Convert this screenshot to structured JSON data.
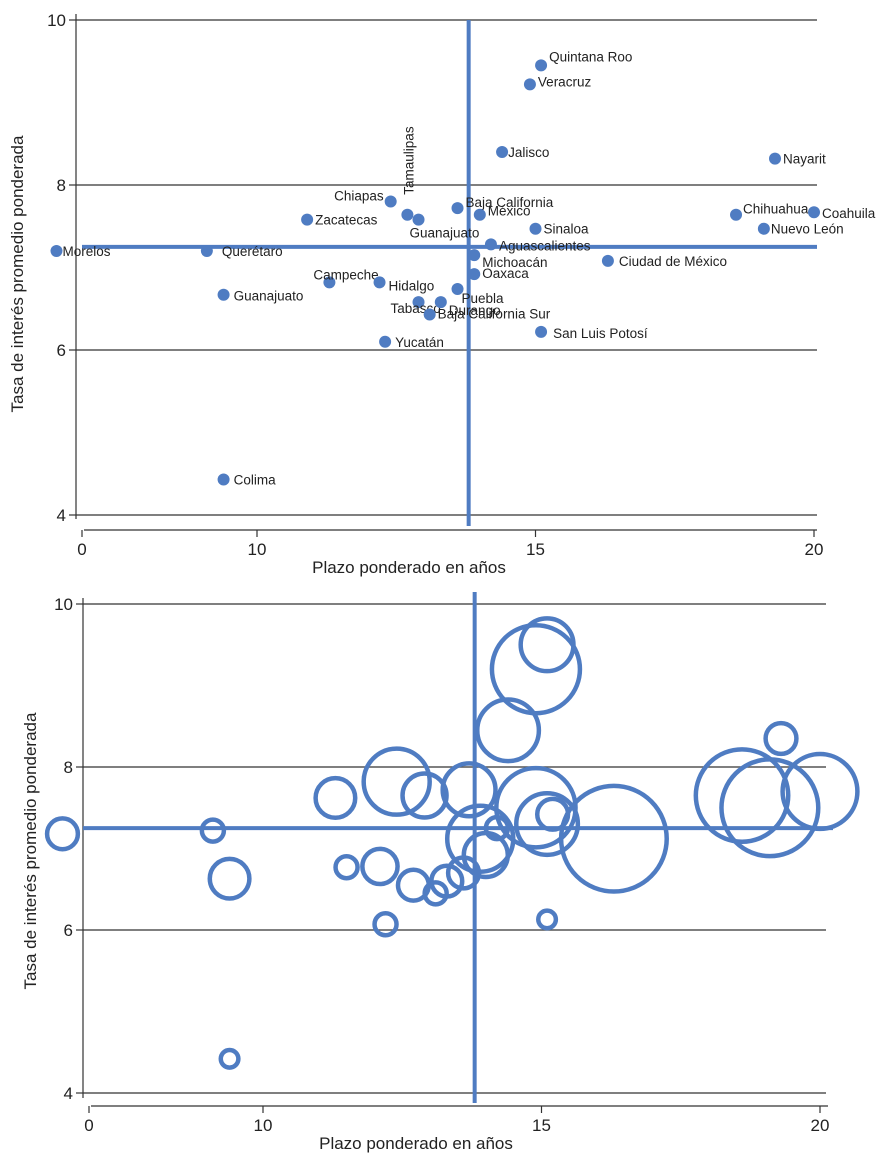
{
  "colors": {
    "marker": "#4f7cc2",
    "grid": "#555555",
    "axis": "#333333",
    "text": "#222222",
    "background": "#ffffff"
  },
  "chart_data": [
    {
      "type": "scatter",
      "title": "",
      "xlabel": "Plazo ponderado en años",
      "ylabel": "Tasa de interés promedio ponderada",
      "xlim": [
        0,
        20
      ],
      "ylim": [
        4,
        10
      ],
      "xticks": [
        "0",
        "10",
        "15",
        "20"
      ],
      "yticks": [
        "4",
        "6",
        "8",
        "10"
      ],
      "reference_lines": {
        "x": 13.8,
        "y": 7.25
      },
      "grid": "horizontal",
      "points": [
        {
          "label": "Quintana Roo",
          "x": 15.1,
          "y": 9.45
        },
        {
          "label": "Veracruz",
          "x": 14.9,
          "y": 9.22
        },
        {
          "label": "Jalisco",
          "x": 14.4,
          "y": 8.4
        },
        {
          "label": "Nayarit",
          "x": 19.3,
          "y": 8.32
        },
        {
          "label": "Chiapas",
          "x": 12.4,
          "y": 7.8
        },
        {
          "label": "Tamaulipas",
          "x": 12.7,
          "y": 7.64
        },
        {
          "label": "Guanajuato",
          "x": 12.9,
          "y": 7.58
        },
        {
          "label": "Baja California",
          "x": 13.6,
          "y": 7.72
        },
        {
          "label": "México",
          "x": 14.0,
          "y": 7.64
        },
        {
          "label": "Sinaloa",
          "x": 15.0,
          "y": 7.47
        },
        {
          "label": "Zacatecas",
          "x": 10.9,
          "y": 7.58
        },
        {
          "label": "Chihuahua",
          "x": 18.6,
          "y": 7.64
        },
        {
          "label": "Coahuila",
          "x": 20.0,
          "y": 7.67
        },
        {
          "label": "Nuevo León",
          "x": 19.1,
          "y": 7.47
        },
        {
          "label": "Aguascalientes",
          "x": 14.2,
          "y": 7.28
        },
        {
          "label": "Michoacán",
          "x": 13.9,
          "y": 7.15
        },
        {
          "label": "Morelos",
          "x": 6.4,
          "y": 7.2
        },
        {
          "label": "Querétaro",
          "x": 9.1,
          "y": 7.2
        },
        {
          "label": "Ciudad de México",
          "x": 16.3,
          "y": 7.08
        },
        {
          "label": "Oaxaca",
          "x": 13.9,
          "y": 6.92
        },
        {
          "label": "Campeche",
          "x": 11.3,
          "y": 6.82
        },
        {
          "label": "Hidalgo",
          "x": 12.2,
          "y": 6.82
        },
        {
          "label": "Puebla",
          "x": 13.6,
          "y": 6.74
        },
        {
          "label": "Guanajuato",
          "x": 9.4,
          "y": 6.67
        },
        {
          "label": "Tabasco",
          "x": 12.9,
          "y": 6.58
        },
        {
          "label": "Durango",
          "x": 13.3,
          "y": 6.58
        },
        {
          "label": "Baja California Sur",
          "x": 13.1,
          "y": 6.43
        },
        {
          "label": "San Luis Potosí",
          "x": 15.1,
          "y": 6.22
        },
        {
          "label": "Yucatán",
          "x": 12.3,
          "y": 6.1
        },
        {
          "label": "Colima",
          "x": 9.4,
          "y": 4.43
        }
      ]
    },
    {
      "type": "scatter",
      "title": "",
      "xlabel": "Plazo ponderado en años",
      "ylabel": "Tasa de interés promedio ponderada",
      "xlim": [
        0,
        20
      ],
      "ylim": [
        4,
        10
      ],
      "xticks": [
        "0",
        "10",
        "15",
        "20"
      ],
      "yticks": [
        "4",
        "6",
        "8",
        "10"
      ],
      "reference_lines": {
        "x": 13.8,
        "y": 7.25
      },
      "grid": "horizontal",
      "bubble_size_relative": true,
      "points": [
        {
          "x": 15.1,
          "y": 9.5,
          "size": 0.6
        },
        {
          "x": 14.9,
          "y": 9.2,
          "size": 1.0
        },
        {
          "x": 14.4,
          "y": 8.45,
          "size": 0.7
        },
        {
          "x": 19.3,
          "y": 8.35,
          "size": 0.35
        },
        {
          "x": 12.4,
          "y": 7.82,
          "size": 0.75
        },
        {
          "x": 12.9,
          "y": 7.65,
          "size": 0.5
        },
        {
          "x": 13.7,
          "y": 7.72,
          "size": 0.6
        },
        {
          "x": 14.9,
          "y": 7.5,
          "size": 0.9
        },
        {
          "x": 15.1,
          "y": 7.3,
          "size": 0.7
        },
        {
          "x": 15.2,
          "y": 7.42,
          "size": 0.35
        },
        {
          "x": 18.6,
          "y": 7.65,
          "size": 1.05
        },
        {
          "x": 19.1,
          "y": 7.5,
          "size": 1.1
        },
        {
          "x": 20.0,
          "y": 7.7,
          "size": 0.85
        },
        {
          "x": 11.3,
          "y": 7.62,
          "size": 0.45
        },
        {
          "x": 14.2,
          "y": 7.25,
          "size": 0.25
        },
        {
          "x": 13.9,
          "y": 7.12,
          "size": 0.75
        },
        {
          "x": 6.4,
          "y": 7.18,
          "size": 0.35
        },
        {
          "x": 9.1,
          "y": 7.22,
          "size": 0.25
        },
        {
          "x": 16.3,
          "y": 7.12,
          "size": 1.2
        },
        {
          "x": 14.0,
          "y": 6.92,
          "size": 0.5
        },
        {
          "x": 11.5,
          "y": 6.77,
          "size": 0.25
        },
        {
          "x": 12.1,
          "y": 6.78,
          "size": 0.4
        },
        {
          "x": 13.6,
          "y": 6.7,
          "size": 0.35
        },
        {
          "x": 9.4,
          "y": 6.63,
          "size": 0.45
        },
        {
          "x": 12.7,
          "y": 6.55,
          "size": 0.35
        },
        {
          "x": 13.3,
          "y": 6.6,
          "size": 0.35
        },
        {
          "x": 13.1,
          "y": 6.45,
          "size": 0.25
        },
        {
          "x": 15.1,
          "y": 6.13,
          "size": 0.2
        },
        {
          "x": 12.2,
          "y": 6.07,
          "size": 0.25
        },
        {
          "x": 9.4,
          "y": 4.42,
          "size": 0.2
        }
      ]
    }
  ]
}
